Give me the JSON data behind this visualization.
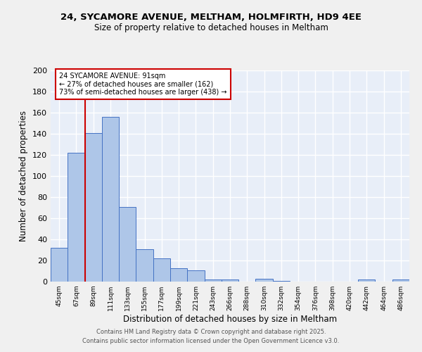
{
  "title1": "24, SYCAMORE AVENUE, MELTHAM, HOLMFIRTH, HD9 4EE",
  "title2": "Size of property relative to detached houses in Meltham",
  "xlabel": "Distribution of detached houses by size in Meltham",
  "ylabel": "Number of detached properties",
  "categories": [
    "45sqm",
    "67sqm",
    "89sqm",
    "111sqm",
    "133sqm",
    "155sqm",
    "177sqm",
    "199sqm",
    "221sqm",
    "243sqm",
    "266sqm",
    "288sqm",
    "310sqm",
    "332sqm",
    "354sqm",
    "376sqm",
    "398sqm",
    "420sqm",
    "442sqm",
    "464sqm",
    "486sqm"
  ],
  "values": [
    32,
    122,
    141,
    156,
    71,
    31,
    22,
    13,
    11,
    2,
    2,
    0,
    3,
    1,
    0,
    0,
    0,
    0,
    2,
    0,
    2
  ],
  "bar_color": "#aec6e8",
  "bar_edge_color": "#4472c4",
  "vline_index": 2,
  "vline_color": "#cc0000",
  "annotation_title": "24 SYCAMORE AVENUE: 91sqm",
  "annotation_line1": "← 27% of detached houses are smaller (162)",
  "annotation_line2": "73% of semi-detached houses are larger (438) →",
  "annotation_box_color": "#cc0000",
  "ylim": [
    0,
    200
  ],
  "yticks": [
    0,
    20,
    40,
    60,
    80,
    100,
    120,
    140,
    160,
    180,
    200
  ],
  "fig_bg_color": "#f0f0f0",
  "plot_bg_color": "#e8eef8",
  "grid_color": "#ffffff",
  "footnote1": "Contains HM Land Registry data © Crown copyright and database right 2025.",
  "footnote2": "Contains public sector information licensed under the Open Government Licence v3.0."
}
